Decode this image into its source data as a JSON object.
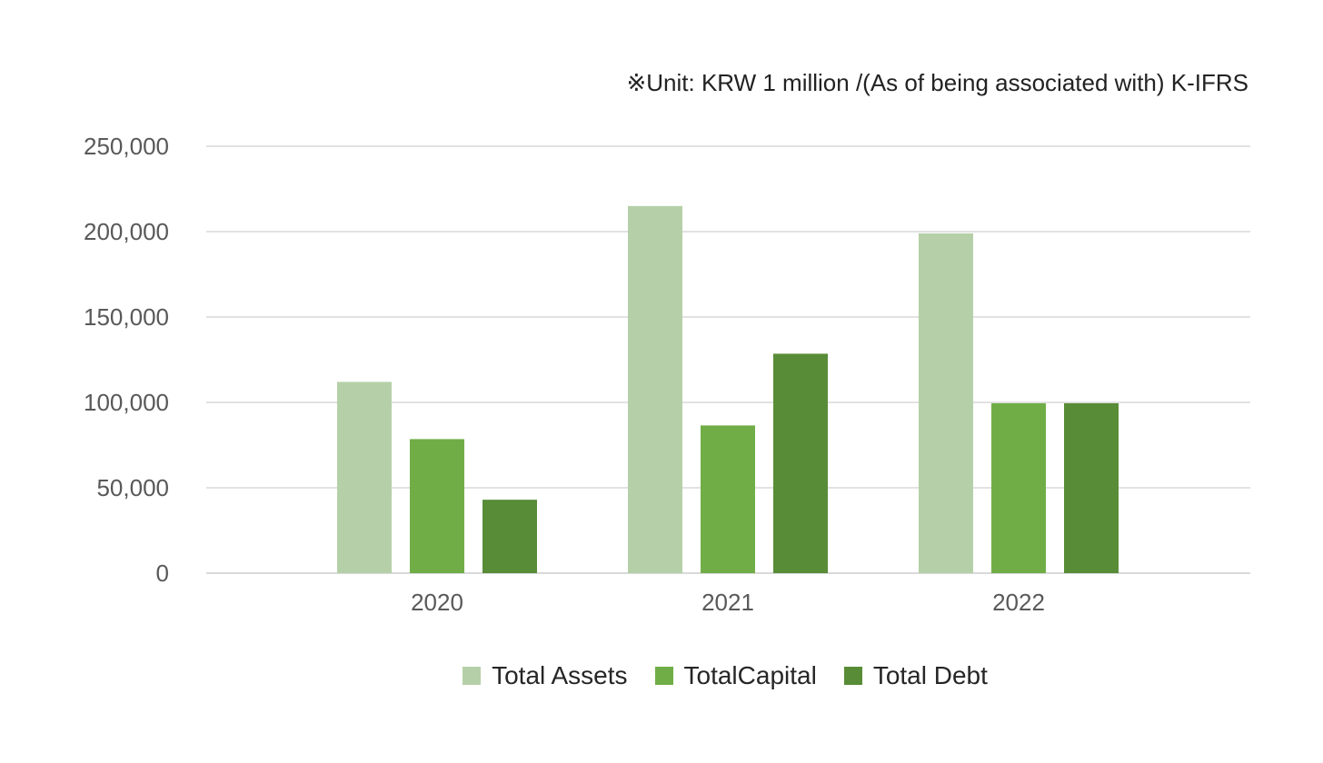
{
  "unit_note": "※Unit: KRW 1 million /(As of being associated with) K-IFRS",
  "colors": {
    "total_assets": "#b5d0a8",
    "total_capital": "#70ad47",
    "total_debt": "#588c37",
    "grid": "#d9d9d9",
    "tick_text": "#595959"
  },
  "chart_data": {
    "type": "bar",
    "title": "",
    "xlabel": "",
    "ylabel": "",
    "categories": [
      "2020",
      "2021",
      "2022"
    ],
    "series": [
      {
        "name": "Total Assets",
        "values": [
          112000,
          215000,
          199000
        ]
      },
      {
        "name": "TotalCapital",
        "values": [
          78500,
          86500,
          99500
        ]
      },
      {
        "name": "Total Debt",
        "values": [
          43000,
          128500,
          99500
        ]
      }
    ],
    "ylim": [
      0,
      250000
    ],
    "y_ticks": [
      "0",
      "50,000",
      "100,000",
      "150,000",
      "200,000",
      "250,000"
    ],
    "grid": true,
    "legend_position": "bottom"
  }
}
